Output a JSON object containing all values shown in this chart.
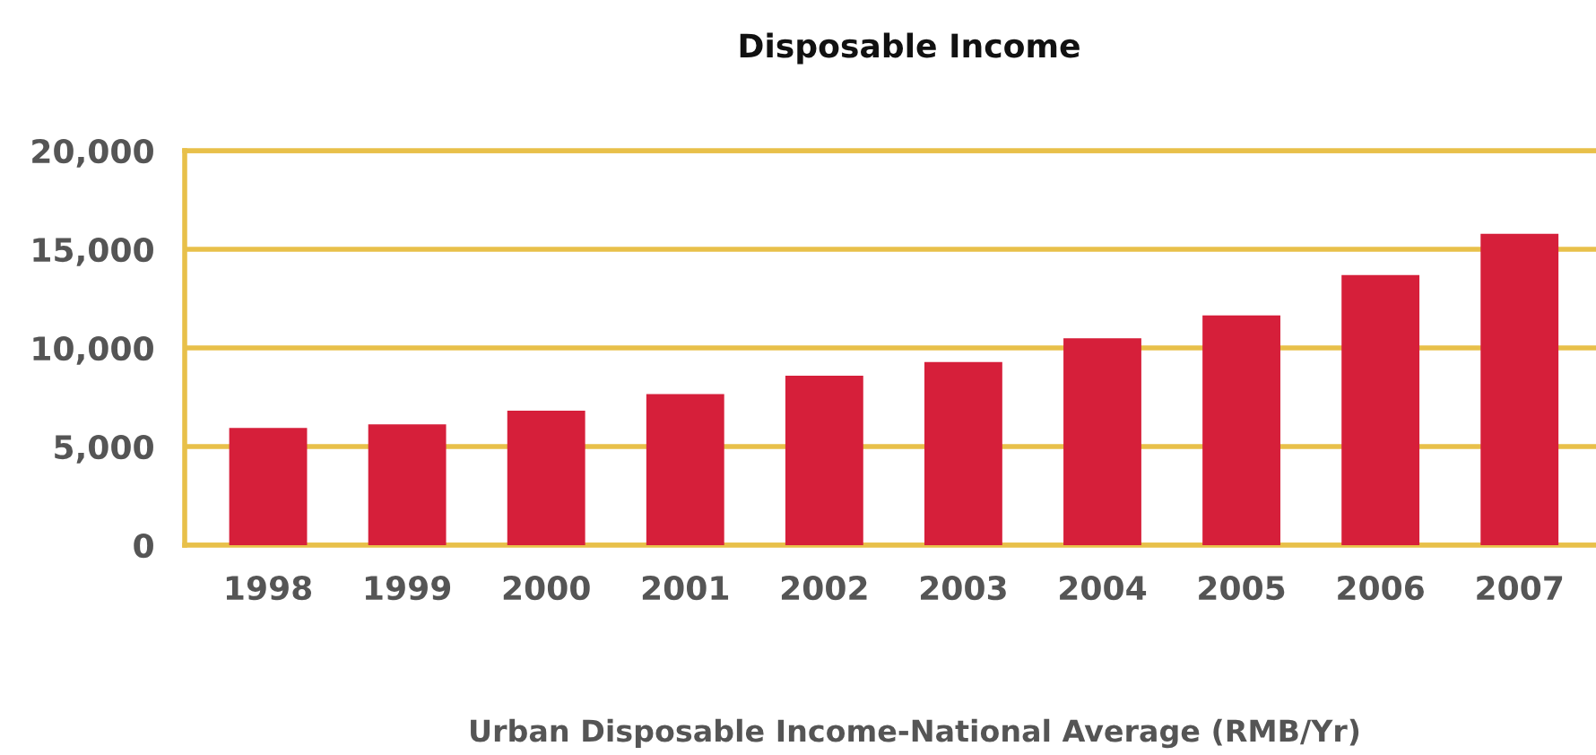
{
  "chart_data": {
    "type": "bar",
    "title": "Disposable Income",
    "xlabel": "Urban Disposable Income-National Average (RMB/Yr)",
    "categories": [
      "1998",
      "1999",
      "2000",
      "2001",
      "2002",
      "2003",
      "2004",
      "2005",
      "2006",
      "2007"
    ],
    "values": [
      5940,
      6130,
      6820,
      7660,
      8590,
      9280,
      10490,
      11650,
      13690,
      15780
    ],
    "color": "#d61f3a",
    "ylim": [
      0,
      20000
    ],
    "yticks": [
      {
        "value": 0,
        "label": "0"
      },
      {
        "value": 5000,
        "label": "5,000"
      },
      {
        "value": 10000,
        "label": "10,000"
      },
      {
        "value": 15000,
        "label": "15,000"
      },
      {
        "value": 20000,
        "label": "20,000"
      }
    ],
    "grid": "y",
    "legend": false
  }
}
